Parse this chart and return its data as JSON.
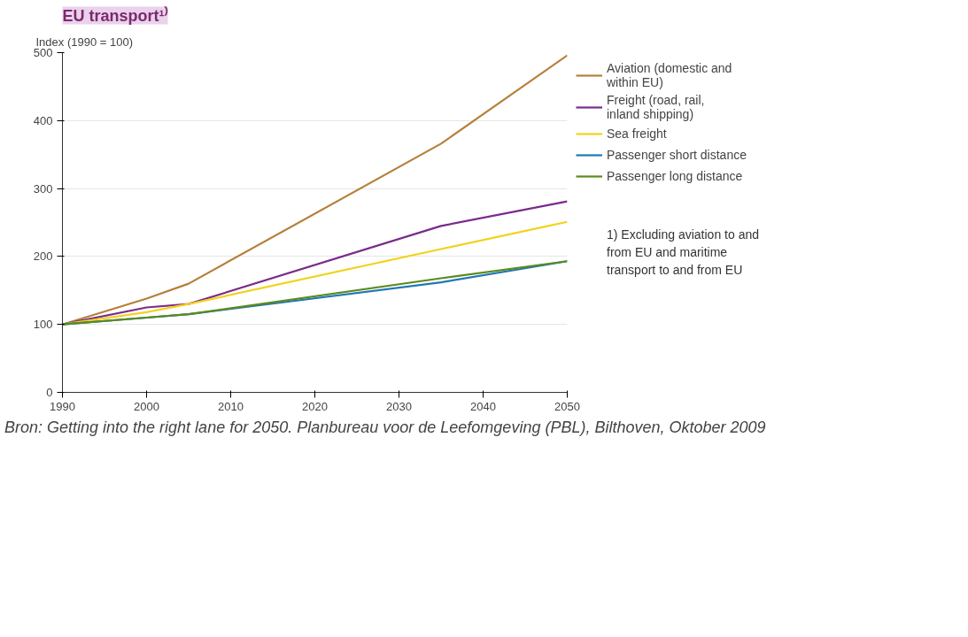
{
  "chart_data": {
    "type": "line",
    "title": "EU transport¹⁾",
    "ylabel": "Index (1990 = 100)",
    "xlim": [
      1990,
      2050
    ],
    "xticks": [
      1990,
      2000,
      2010,
      2020,
      2030,
      2040,
      2050
    ],
    "ylim": [
      0,
      500
    ],
    "yticks": [
      0,
      100,
      200,
      300,
      400,
      500
    ],
    "grid": "y",
    "legend": "right",
    "line_style": "solid",
    "series": [
      {
        "name": "Aviation (domestic and within EU)",
        "color": "#b5803a",
        "x": [
          1990,
          2000,
          2005,
          2035,
          2050
        ],
        "values": [
          100,
          138,
          160,
          366,
          496
        ]
      },
      {
        "name": "Freight (road, rail, inland shipping)",
        "color": "#7b2a8c",
        "x": [
          1990,
          2000,
          2005,
          2035,
          2050
        ],
        "values": [
          100,
          125,
          130,
          245,
          281
        ]
      },
      {
        "name": "Sea freight",
        "color": "#f2d21b",
        "x": [
          1990,
          2000,
          2005,
          2035,
          2050
        ],
        "values": [
          100,
          118,
          130,
          211,
          251
        ]
      },
      {
        "name": "Passenger short distance",
        "color": "#1f78b4",
        "x": [
          1990,
          2000,
          2005,
          2035,
          2050
        ],
        "values": [
          100,
          110,
          115,
          162,
          193
        ]
      },
      {
        "name": "Passenger long distance",
        "color": "#5a8a1e",
        "x": [
          1990,
          2000,
          2005,
          2035,
          2050
        ],
        "values": [
          100,
          110,
          115,
          168,
          193
        ]
      }
    ],
    "annotations": [
      "1) Excluding aviation to and from EU and maritime transport to and from EU",
      "Bron: Getting into the right lane for 2050. Planbureau voor de Leefomgeving (PBL), Bilthoven, Oktober 2009"
    ]
  }
}
